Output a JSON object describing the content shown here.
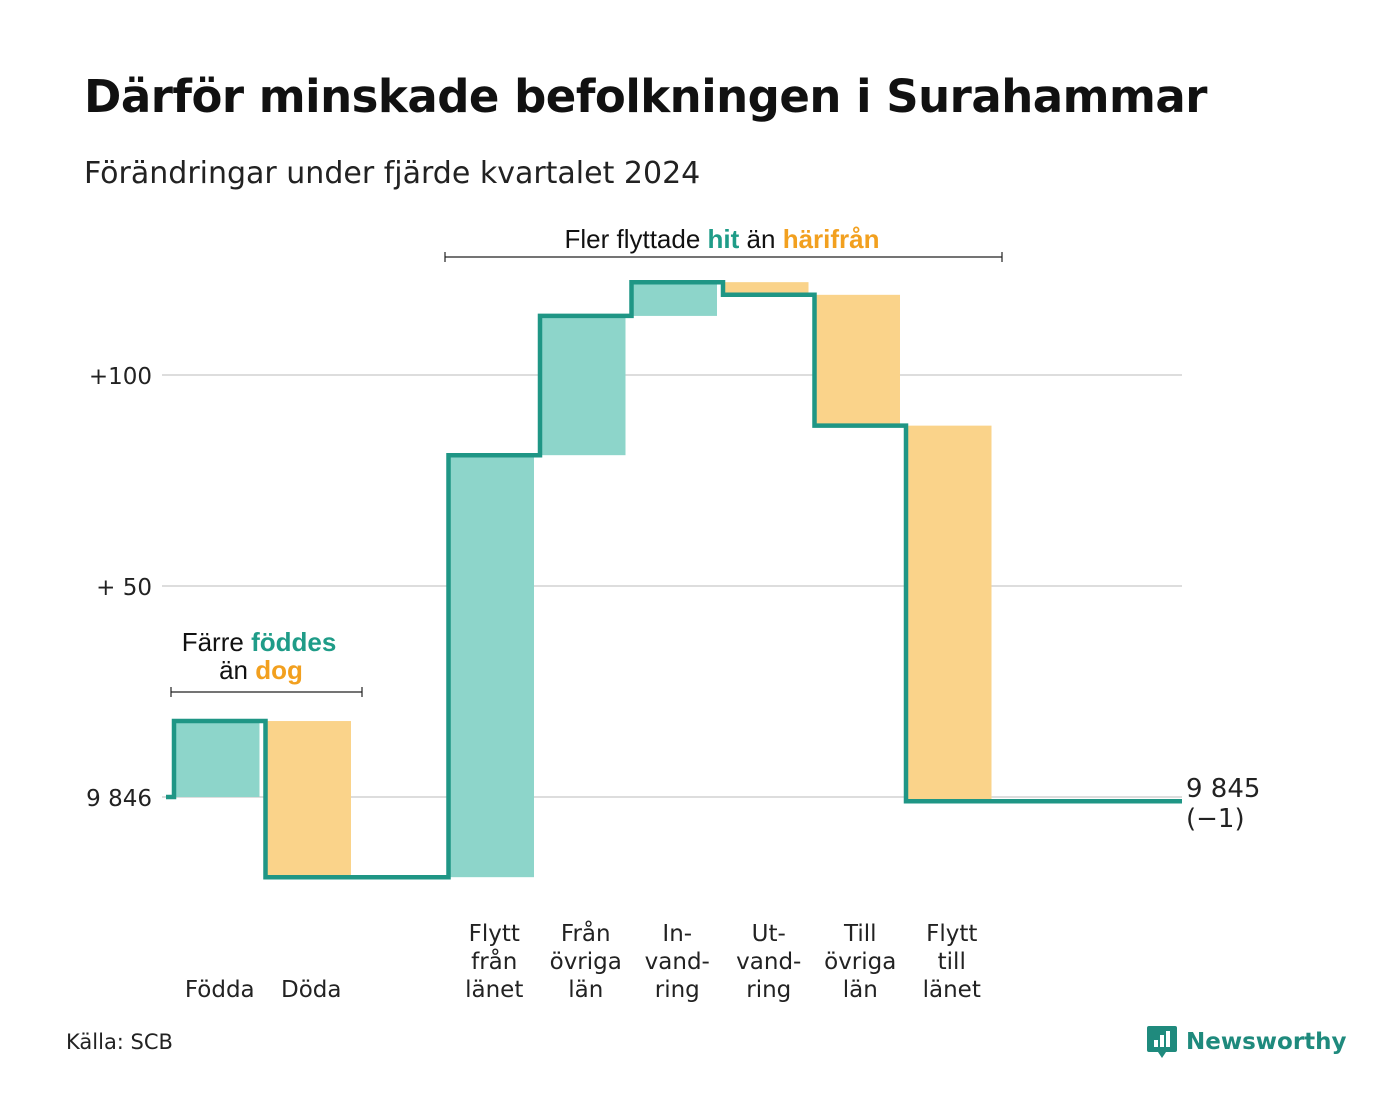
{
  "title": "Därför minskade befolkningen i Surahammar",
  "subtitle": "Förändringar under fjärde kvartalet 2024",
  "source": "Källa: SCB",
  "brand": "Newsworthy",
  "colors": {
    "inflow": "#8dd5ca",
    "outflow": "#fad38a",
    "line": "#1f9685",
    "grid": "#dddddd",
    "accent_green": "#1f9c88",
    "accent_orange": "#f2a01f"
  },
  "annotations": {
    "top": {
      "pre": "Fler flyttade",
      "hl1": "hit",
      "mid": "än",
      "hl2": "härifrån"
    },
    "left": {
      "pre": "Färre",
      "hl1": "föddes",
      "mid": "än",
      "hl2": "dog"
    }
  },
  "chart_data": {
    "type": "waterfall",
    "base_population": 9846,
    "end_label": "9 845",
    "end_change": "(−1)",
    "yticks": [
      {
        "value": 0,
        "label": "9 846"
      },
      {
        "value": 50,
        "label": "+ 50"
      },
      {
        "value": 100,
        "label": "+100"
      }
    ],
    "steps": [
      {
        "label_lines": [
          "Födda"
        ],
        "value": 18,
        "kind": "in"
      },
      {
        "label_lines": [
          "Döda"
        ],
        "value": -37,
        "kind": "out"
      },
      {
        "label_lines": [],
        "value": 0,
        "kind": "gap"
      },
      {
        "label_lines": [
          "Flytt",
          "från",
          "länet"
        ],
        "value": 100,
        "kind": "in"
      },
      {
        "label_lines": [
          "Från",
          "övriga",
          "län"
        ],
        "value": 33,
        "kind": "in"
      },
      {
        "label_lines": [
          "In-",
          "vand-",
          "ring"
        ],
        "value": 8,
        "kind": "in"
      },
      {
        "label_lines": [
          "Ut-",
          "vand-",
          "ring"
        ],
        "value": -3,
        "kind": "out"
      },
      {
        "label_lines": [
          "Till",
          "övriga",
          "län"
        ],
        "value": -31,
        "kind": "out"
      },
      {
        "label_lines": [
          "Flytt",
          "till",
          "länet"
        ],
        "value": -89,
        "kind": "out"
      }
    ],
    "total_change": -1
  }
}
